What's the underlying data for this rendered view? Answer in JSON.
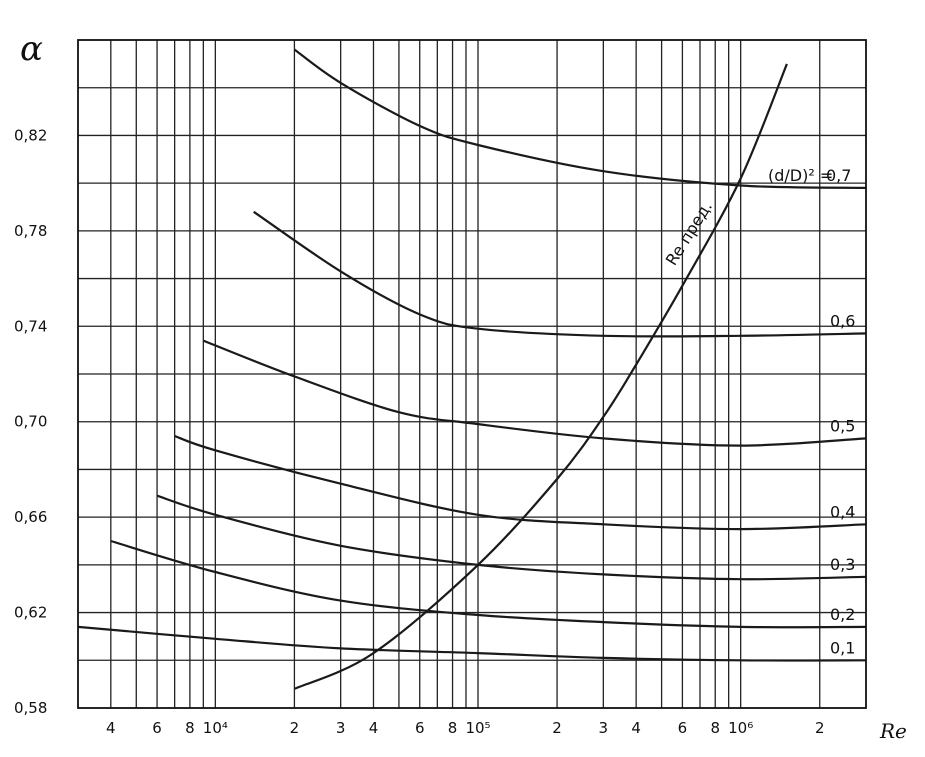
{
  "chart_data": {
    "type": "line",
    "ylabel": "α",
    "xlabel": "Re",
    "x_scale": "log",
    "ylim": [
      0.58,
      0.86
    ],
    "xlim": [
      3000,
      3000000
    ],
    "grid": true,
    "y_ticks": [
      0.58,
      0.62,
      0.66,
      0.7,
      0.74,
      0.78,
      0.82
    ],
    "y_tick_labels": [
      "0,58",
      "0,62",
      "0,66",
      "0,70",
      "0,74",
      "0,78",
      "0,82"
    ],
    "x_ticks": [
      {
        "value": 4000,
        "label": "4"
      },
      {
        "value": 6000,
        "label": "6"
      },
      {
        "value": 8000,
        "label": "8"
      },
      {
        "value": 10000,
        "label": "10⁴"
      },
      {
        "value": 20000,
        "label": "2"
      },
      {
        "value": 30000,
        "label": "3"
      },
      {
        "value": 40000,
        "label": "4"
      },
      {
        "value": 60000,
        "label": "6"
      },
      {
        "value": 80000,
        "label": "8"
      },
      {
        "value": 100000,
        "label": "10⁵"
      },
      {
        "value": 200000,
        "label": "2"
      },
      {
        "value": 300000,
        "label": "3"
      },
      {
        "value": 400000,
        "label": "4"
      },
      {
        "value": 600000,
        "label": "6"
      },
      {
        "value": 800000,
        "label": "8"
      },
      {
        "value": 1000000,
        "label": "10⁶"
      },
      {
        "value": 2000000,
        "label": "2"
      }
    ],
    "series": [
      {
        "name": "0,1",
        "x": [
          3000,
          10000,
          30000,
          100000,
          300000,
          1000000,
          3000000
        ],
        "y": [
          0.614,
          0.609,
          0.605,
          0.603,
          0.601,
          0.6,
          0.6
        ]
      },
      {
        "name": "0,2",
        "x": [
          4000,
          10000,
          30000,
          100000,
          300000,
          1000000,
          3000000
        ],
        "y": [
          0.65,
          0.637,
          0.625,
          0.619,
          0.616,
          0.614,
          0.614
        ]
      },
      {
        "name": "0,3",
        "x": [
          6000,
          10000,
          30000,
          100000,
          300000,
          1000000,
          3000000
        ],
        "y": [
          0.669,
          0.661,
          0.648,
          0.64,
          0.636,
          0.634,
          0.635
        ]
      },
      {
        "name": "0,4",
        "x": [
          7000,
          10000,
          30000,
          100000,
          300000,
          1000000,
          3000000
        ],
        "y": [
          0.694,
          0.688,
          0.674,
          0.661,
          0.657,
          0.655,
          0.657
        ]
      },
      {
        "name": "0,5",
        "x": [
          9000,
          20000,
          50000,
          100000,
          300000,
          1000000,
          3000000
        ],
        "y": [
          0.734,
          0.719,
          0.704,
          0.699,
          0.693,
          0.69,
          0.693
        ]
      },
      {
        "name": "0,6",
        "x": [
          14000,
          30000,
          60000,
          100000,
          300000,
          1000000,
          3000000
        ],
        "y": [
          0.788,
          0.763,
          0.745,
          0.739,
          0.736,
          0.736,
          0.737
        ]
      },
      {
        "name": "0,7",
        "x": [
          20000,
          30000,
          60000,
          100000,
          300000,
          1000000,
          3000000
        ],
        "y": [
          0.856,
          0.842,
          0.824,
          0.816,
          0.805,
          0.799,
          0.798
        ]
      }
    ],
    "boundary": {
      "name": "Re пред.",
      "x": [
        20000,
        40000,
        100000,
        200000,
        300000,
        400000,
        600000,
        1000000,
        1500000
      ],
      "y": [
        0.588,
        0.603,
        0.64,
        0.676,
        0.702,
        0.724,
        0.757,
        0.802,
        0.85
      ]
    },
    "annotations": {
      "param_prefix": "(d/D)² =",
      "boundary_label": "Re пред."
    }
  }
}
